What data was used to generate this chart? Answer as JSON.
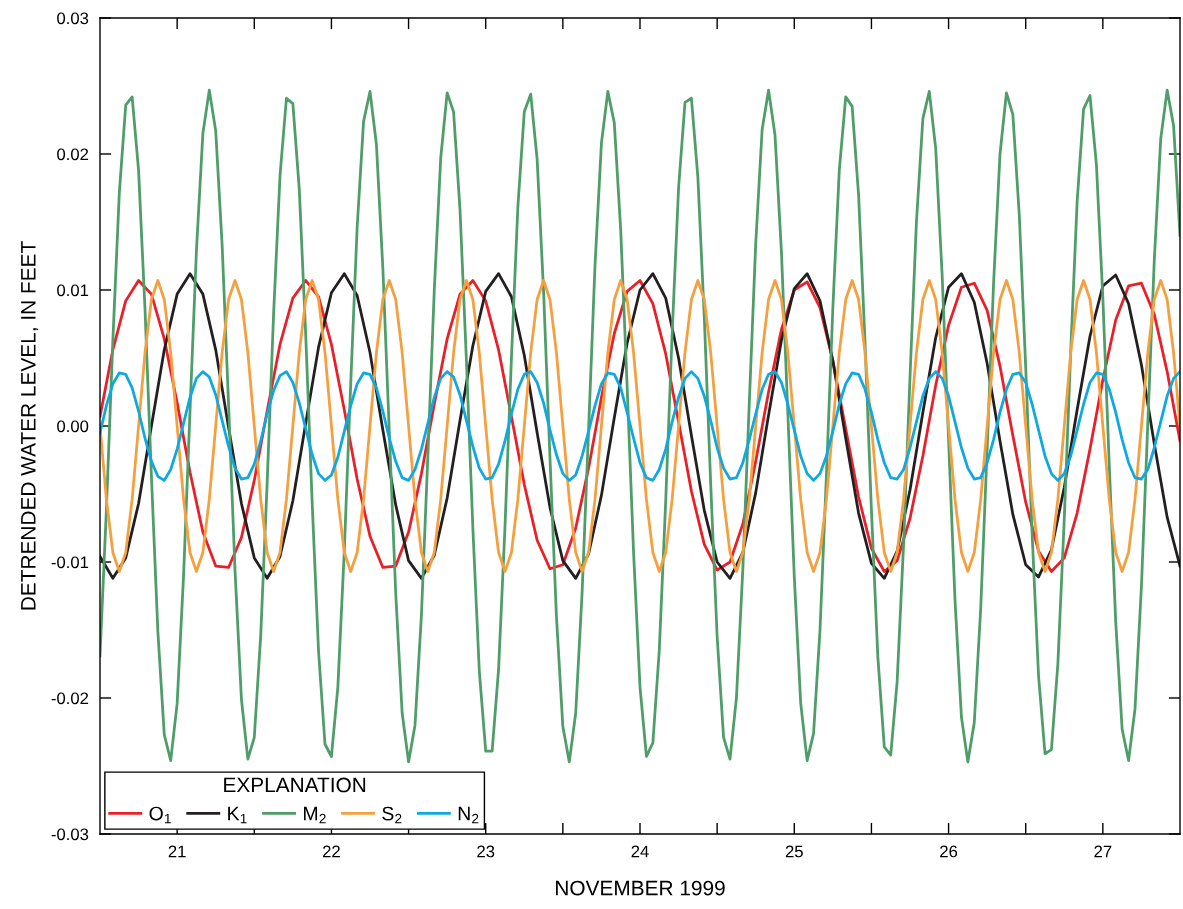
{
  "chart_data": {
    "type": "line",
    "xlabel": "NOVEMBER 1999",
    "ylabel": "DETRENDED WATER LEVEL, IN FEET",
    "legend_title": "EXPLANATION",
    "legend": "bottom left",
    "grid": false,
    "marker": "none",
    "line_style": "solid",
    "xlim": [
      "1999-11-21T00:00",
      "1999-11-28T00:00"
    ],
    "xticks": [
      {
        "value": "1999-11-21T12:00",
        "label": "21"
      },
      {
        "value": "1999-11-22T00:00",
        "label": null
      },
      {
        "value": "1999-11-22T12:00",
        "label": "22"
      },
      {
        "value": "1999-11-23T00:00",
        "label": null
      },
      {
        "value": "1999-11-23T12:00",
        "label": "23"
      },
      {
        "value": "1999-11-24T00:00",
        "label": null
      },
      {
        "value": "1999-11-24T12:00",
        "label": "24"
      },
      {
        "value": "1999-11-25T00:00",
        "label": null
      },
      {
        "value": "1999-11-25T12:00",
        "label": "25"
      },
      {
        "value": "1999-11-26T00:00",
        "label": null
      },
      {
        "value": "1999-11-26T12:00",
        "label": "26"
      },
      {
        "value": "1999-11-27T00:00",
        "label": null
      },
      {
        "value": "1999-11-27T12:00",
        "label": "27"
      }
    ],
    "ylim": [
      -0.03,
      0.03
    ],
    "yticks": [
      -0.03,
      -0.02,
      -0.01,
      {
        "value": 0,
        "label": "0.00"
      },
      0.01,
      0.02,
      0.03
    ],
    "x": [
      "1999-11-21T00:00",
      "1999-11-21T01:00",
      "1999-11-21T02:00",
      "1999-11-21T03:00",
      "1999-11-21T04:00",
      "1999-11-21T05:00",
      "1999-11-21T06:00",
      "1999-11-21T07:00",
      "1999-11-21T08:00",
      "1999-11-21T09:00",
      "1999-11-21T10:00",
      "1999-11-21T11:00",
      "1999-11-21T12:00",
      "1999-11-21T13:00",
      "1999-11-21T14:00",
      "1999-11-21T15:00",
      "1999-11-21T16:00",
      "1999-11-21T17:00",
      "1999-11-21T18:00",
      "1999-11-21T19:00",
      "1999-11-21T20:00",
      "1999-11-21T21:00",
      "1999-11-21T22:00",
      "1999-11-21T23:00",
      "1999-11-22T00:00",
      "1999-11-22T01:00",
      "1999-11-22T02:00",
      "1999-11-22T03:00",
      "1999-11-22T04:00",
      "1999-11-22T05:00",
      "1999-11-22T06:00",
      "1999-11-22T07:00",
      "1999-11-22T08:00",
      "1999-11-22T09:00",
      "1999-11-22T10:00",
      "1999-11-22T11:00",
      "1999-11-22T12:00",
      "1999-11-22T13:00",
      "1999-11-22T14:00",
      "1999-11-22T15:00",
      "1999-11-22T16:00",
      "1999-11-22T17:00",
      "1999-11-22T18:00",
      "1999-11-22T19:00",
      "1999-11-22T20:00",
      "1999-11-22T21:00",
      "1999-11-22T22:00",
      "1999-11-22T23:00",
      "1999-11-23T00:00",
      "1999-11-23T01:00",
      "1999-11-23T02:00",
      "1999-11-23T03:00",
      "1999-11-23T04:00",
      "1999-11-23T05:00",
      "1999-11-23T06:00",
      "1999-11-23T07:00",
      "1999-11-23T08:00",
      "1999-11-23T09:00",
      "1999-11-23T10:00",
      "1999-11-23T11:00",
      "1999-11-23T12:00",
      "1999-11-23T13:00",
      "1999-11-23T14:00",
      "1999-11-23T15:00",
      "1999-11-23T16:00",
      "1999-11-23T17:00",
      "1999-11-23T18:00",
      "1999-11-23T19:00",
      "1999-11-23T20:00",
      "1999-11-23T21:00",
      "1999-11-23T22:00",
      "1999-11-23T23:00",
      "1999-11-24T00:00",
      "1999-11-24T01:00",
      "1999-11-24T02:00",
      "1999-11-24T03:00",
      "1999-11-24T04:00",
      "1999-11-24T05:00",
      "1999-11-24T06:00",
      "1999-11-24T07:00",
      "1999-11-24T08:00",
      "1999-11-24T09:00",
      "1999-11-24T10:00",
      "1999-11-24T11:00",
      "1999-11-24T12:00",
      "1999-11-24T13:00",
      "1999-11-24T14:00",
      "1999-11-24T15:00",
      "1999-11-24T16:00",
      "1999-11-24T17:00",
      "1999-11-24T18:00",
      "1999-11-24T19:00",
      "1999-11-24T20:00",
      "1999-11-24T21:00",
      "1999-11-24T22:00",
      "1999-11-24T23:00",
      "1999-11-25T00:00",
      "1999-11-25T01:00",
      "1999-11-25T02:00",
      "1999-11-25T03:00",
      "1999-11-25T04:00",
      "1999-11-25T05:00",
      "1999-11-25T06:00",
      "1999-11-25T07:00",
      "1999-11-25T08:00",
      "1999-11-25T09:00",
      "1999-11-25T10:00",
      "1999-11-25T11:00",
      "1999-11-25T12:00",
      "1999-11-25T13:00",
      "1999-11-25T14:00",
      "1999-11-25T15:00",
      "1999-11-25T16:00",
      "1999-11-25T17:00",
      "1999-11-25T18:00",
      "1999-11-25T19:00",
      "1999-11-25T20:00",
      "1999-11-25T21:00",
      "1999-11-25T22:00",
      "1999-11-25T23:00",
      "1999-11-26T00:00",
      "1999-11-26T01:00",
      "1999-11-26T02:00",
      "1999-11-26T03:00",
      "1999-11-26T04:00",
      "1999-11-26T05:00",
      "1999-11-26T06:00",
      "1999-11-26T07:00",
      "1999-11-26T08:00",
      "1999-11-26T09:00",
      "1999-11-26T10:00",
      "1999-11-26T11:00",
      "1999-11-26T12:00",
      "1999-11-26T13:00",
      "1999-11-26T14:00",
      "1999-11-26T15:00",
      "1999-11-26T16:00",
      "1999-11-26T17:00",
      "1999-11-26T18:00",
      "1999-11-26T19:00",
      "1999-11-26T20:00",
      "1999-11-26T21:00",
      "1999-11-26T22:00",
      "1999-11-26T23:00",
      "1999-11-27T00:00",
      "1999-11-27T01:00",
      "1999-11-27T02:00",
      "1999-11-27T03:00",
      "1999-11-27T04:00",
      "1999-11-27T05:00",
      "1999-11-27T06:00",
      "1999-11-27T07:00",
      "1999-11-27T08:00",
      "1999-11-27T09:00",
      "1999-11-27T10:00",
      "1999-11-27T11:00",
      "1999-11-27T12:00",
      "1999-11-27T13:00",
      "1999-11-27T14:00",
      "1999-11-27T15:00",
      "1999-11-27T16:00",
      "1999-11-27T17:00",
      "1999-11-27T18:00",
      "1999-11-27T19:00",
      "1999-11-27T20:00",
      "1999-11-27T21:00",
      "1999-11-27T22:00",
      "1999-11-27T23:00",
      "1999-11-28T00:00"
    ],
    "series": [
      {
        "name": "O$_{1}$",
        "color": "#e8202a",
        "x": [
          "1999-11-21T00:00",
          "1999-11-21T02:00",
          "1999-11-21T04:00",
          "1999-11-21T06:00",
          "1999-11-21T08:00",
          "1999-11-21T10:00",
          "1999-11-21T12:00",
          "1999-11-21T14:00",
          "1999-11-21T16:00",
          "1999-11-21T18:00",
          "1999-11-21T20:00",
          "1999-11-21T22:00",
          "1999-11-22T00:00",
          "1999-11-22T02:00",
          "1999-11-22T04:00",
          "1999-11-22T06:00",
          "1999-11-22T08:00",
          "1999-11-22T10:00",
          "1999-11-22T12:00",
          "1999-11-22T14:00",
          "1999-11-22T16:00",
          "1999-11-22T18:00",
          "1999-11-22T20:00",
          "1999-11-22T22:00",
          "1999-11-23T00:00",
          "1999-11-23T02:00",
          "1999-11-23T04:00",
          "1999-11-23T06:00",
          "1999-11-23T08:00",
          "1999-11-23T10:00",
          "1999-11-23T12:00",
          "1999-11-23T14:00",
          "1999-11-23T16:00",
          "1999-11-23T18:00",
          "1999-11-23T20:00",
          "1999-11-23T22:00",
          "1999-11-24T00:00",
          "1999-11-24T02:00",
          "1999-11-24T04:00",
          "1999-11-24T06:00",
          "1999-11-24T08:00",
          "1999-11-24T10:00",
          "1999-11-24T12:00",
          "1999-11-24T14:00",
          "1999-11-24T16:00",
          "1999-11-24T18:00",
          "1999-11-24T20:00",
          "1999-11-24T22:00",
          "1999-11-25T00:00",
          "1999-11-25T02:00",
          "1999-11-25T04:00",
          "1999-11-25T06:00",
          "1999-11-25T08:00",
          "1999-11-25T10:00",
          "1999-11-25T12:00",
          "1999-11-25T14:00",
          "1999-11-25T16:00",
          "1999-11-25T18:00",
          "1999-11-25T20:00",
          "1999-11-25T22:00",
          "1999-11-26T00:00",
          "1999-11-26T02:00",
          "1999-11-26T04:00",
          "1999-11-26T06:00",
          "1999-11-26T08:00",
          "1999-11-26T10:00",
          "1999-11-26T12:00",
          "1999-11-26T14:00",
          "1999-11-26T16:00",
          "1999-11-26T18:00",
          "1999-11-26T20:00",
          "1999-11-26T22:00",
          "1999-11-27T00:00",
          "1999-11-27T02:00",
          "1999-11-27T04:00",
          "1999-11-27T06:00",
          "1999-11-27T08:00",
          "1999-11-27T10:00",
          "1999-11-27T12:00",
          "1999-11-27T14:00",
          "1999-11-27T16:00",
          "1999-11-27T18:00",
          "1999-11-27T20:00",
          "1999-11-27T22:00",
          "1999-11-28T00:00"
        ],
        "values": [
          0.0007,
          0.0056,
          0.0092,
          0.0107,
          0.0097,
          0.0064,
          0.0017,
          -0.0034,
          -0.0078,
          -0.0103,
          -0.0104,
          -0.0082,
          -0.004,
          0.0011,
          0.006,
          0.0094,
          0.0107,
          0.0095,
          0.006,
          0.0012,
          -0.0039,
          -0.0081,
          -0.0104,
          -0.0103,
          -0.0078,
          -0.0035,
          0.0016,
          0.0064,
          0.0097,
          0.0107,
          0.0092,
          0.0056,
          0.0007,
          -0.0043,
          -0.0084,
          -0.0105,
          -0.0102,
          -0.0075,
          -0.0031,
          0.0021,
          0.0068,
          0.0099,
          0.0107,
          0.009,
          0.0053,
          0.0003,
          -0.0048,
          -0.0087,
          -0.0106,
          -0.01,
          -0.0072,
          -0.0026,
          0.0025,
          0.0071,
          0.01,
          0.0106,
          0.0087,
          0.0048,
          -0.0002,
          -0.0052,
          -0.009,
          -0.0107,
          -0.0099,
          -0.0068,
          -0.0022,
          0.003,
          0.0074,
          0.0102,
          0.0105,
          0.0085,
          0.0044,
          -0.0007,
          -0.0056,
          -0.0092,
          -0.0107,
          -0.0097,
          -0.0064,
          -0.0017,
          0.0034,
          0.0078,
          0.0103,
          0.0105,
          0.0082,
          0.004,
          -0.0011
        ]
      },
      {
        "name": "K$_{1}$",
        "color": "#231f20",
        "x": [
          "1999-11-21T00:00",
          "1999-11-21T02:00",
          "1999-11-21T04:00",
          "1999-11-21T06:00",
          "1999-11-21T08:00",
          "1999-11-21T10:00",
          "1999-11-21T12:00",
          "1999-11-21T14:00",
          "1999-11-21T16:00",
          "1999-11-21T18:00",
          "1999-11-21T20:00",
          "1999-11-21T22:00",
          "1999-11-22T00:00",
          "1999-11-22T02:00",
          "1999-11-22T04:00",
          "1999-11-22T06:00",
          "1999-11-22T08:00",
          "1999-11-22T10:00",
          "1999-11-22T12:00",
          "1999-11-22T14:00",
          "1999-11-22T16:00",
          "1999-11-22T18:00",
          "1999-11-22T20:00",
          "1999-11-22T22:00",
          "1999-11-23T00:00",
          "1999-11-23T02:00",
          "1999-11-23T04:00",
          "1999-11-23T06:00",
          "1999-11-23T08:00",
          "1999-11-23T10:00",
          "1999-11-23T12:00",
          "1999-11-23T14:00",
          "1999-11-23T16:00",
          "1999-11-23T18:00",
          "1999-11-23T20:00",
          "1999-11-23T22:00",
          "1999-11-24T00:00",
          "1999-11-24T02:00",
          "1999-11-24T04:00",
          "1999-11-24T06:00",
          "1999-11-24T08:00",
          "1999-11-24T10:00",
          "1999-11-24T12:00",
          "1999-11-24T14:00",
          "1999-11-24T16:00",
          "1999-11-24T18:00",
          "1999-11-24T20:00",
          "1999-11-24T22:00",
          "1999-11-25T00:00",
          "1999-11-25T02:00",
          "1999-11-25T04:00",
          "1999-11-25T06:00",
          "1999-11-25T08:00",
          "1999-11-25T10:00",
          "1999-11-25T12:00",
          "1999-11-25T14:00",
          "1999-11-25T16:00",
          "1999-11-25T18:00",
          "1999-11-25T20:00",
          "1999-11-25T22:00",
          "1999-11-26T00:00",
          "1999-11-26T02:00",
          "1999-11-26T04:00",
          "1999-11-26T06:00",
          "1999-11-26T08:00",
          "1999-11-26T10:00",
          "1999-11-26T12:00",
          "1999-11-26T14:00",
          "1999-11-26T16:00",
          "1999-11-26T18:00",
          "1999-11-26T20:00",
          "1999-11-26T22:00",
          "1999-11-27T00:00",
          "1999-11-27T02:00",
          "1999-11-27T04:00",
          "1999-11-27T06:00",
          "1999-11-27T08:00",
          "1999-11-27T10:00",
          "1999-11-27T12:00",
          "1999-11-27T14:00",
          "1999-11-27T16:00",
          "1999-11-27T18:00",
          "1999-11-27T20:00",
          "1999-11-27T22:00",
          "1999-11-28T00:00"
        ],
        "values": [
          -0.0096,
          -0.0112,
          -0.0097,
          -0.0057,
          0.0,
          0.0056,
          0.0097,
          0.0112,
          0.0097,
          0.0056,
          -0.0001,
          -0.0057,
          -0.0097,
          -0.0112,
          -0.0096,
          -0.0055,
          0.0002,
          0.0058,
          0.0098,
          0.0112,
          0.0096,
          0.0054,
          -0.0003,
          -0.0058,
          -0.0099,
          -0.0112,
          -0.0095,
          -0.0053,
          0.0004,
          0.0059,
          0.0099,
          0.0112,
          0.0095,
          0.0052,
          -0.0005,
          -0.006,
          -0.0099,
          -0.0112,
          -0.0094,
          -0.0051,
          0.0006,
          0.0061,
          0.01,
          0.0112,
          0.0094,
          0.005,
          -0.0007,
          -0.0062,
          -0.01,
          -0.0112,
          -0.0093,
          -0.0049,
          0.0008,
          0.0063,
          0.0101,
          0.0112,
          0.0092,
          0.0048,
          -0.0009,
          -0.0064,
          -0.0101,
          -0.0112,
          -0.0092,
          -0.0047,
          0.001,
          0.0065,
          0.0102,
          0.0112,
          0.0091,
          0.0046,
          -0.0011,
          -0.0065,
          -0.0102,
          -0.0111,
          -0.0091,
          -0.0045,
          0.0012,
          0.0066,
          0.0103,
          0.0111,
          0.009,
          0.0045,
          -0.0013,
          -0.0067,
          -0.0103
        ]
      },
      {
        "name": "M$_{2}$",
        "color": "#4f9d69",
        "values": [
          -0.0169,
          -0.0061,
          0.0063,
          0.0171,
          0.0236,
          0.0242,
          0.0188,
          0.0086,
          -0.0037,
          -0.0151,
          -0.0227,
          -0.0246,
          -0.0204,
          -0.011,
          0.0011,
          0.0129,
          0.0215,
          0.0247,
          0.0217,
          0.0133,
          0.0016,
          -0.0106,
          -0.0201,
          -0.0245,
          -0.0229,
          -0.0154,
          -0.0042,
          0.0082,
          0.0184,
          0.0241,
          0.0237,
          0.0174,
          0.0067,
          -0.0056,
          -0.0166,
          -0.0234,
          -0.0243,
          -0.0192,
          -0.0092,
          0.0031,
          0.0146,
          0.0224,
          0.0246,
          0.0207,
          0.0116,
          -0.0004,
          -0.0123,
          -0.0211,
          -0.0247,
          -0.022,
          -0.0139,
          -0.0022,
          0.01,
          0.0197,
          0.0245,
          0.0231,
          0.0159,
          0.0048,
          -0.0075,
          -0.018,
          -0.0239,
          -0.0239,
          -0.0179,
          -0.0074,
          0.005,
          0.0161,
          0.0231,
          0.0244,
          0.0196,
          0.0099,
          -0.0024,
          -0.014,
          -0.0221,
          -0.0247,
          -0.0211,
          -0.0122,
          -0.0003,
          0.0118,
          0.0208,
          0.0246,
          0.0223,
          0.0144,
          0.0029,
          -0.0093,
          -0.0192,
          -0.0243,
          -0.0233,
          -0.0165,
          -0.0055,
          0.0068,
          0.0175,
          0.0238,
          0.0241,
          0.0183,
          0.008,
          -0.0043,
          -0.0155,
          -0.0229,
          -0.0245,
          -0.02,
          -0.0105,
          0.0017,
          0.0134,
          0.0218,
          0.0247,
          0.0214,
          0.0128,
          0.0009,
          -0.0111,
          -0.0204,
          -0.0246,
          -0.0226,
          -0.015,
          -0.0036,
          0.0087,
          0.0188,
          0.0242,
          0.0235,
          0.017,
          0.0062,
          -0.0062,
          -0.017,
          -0.0236,
          -0.0242,
          -0.0188,
          -0.0087,
          0.0036,
          0.015,
          0.0226,
          0.0246,
          0.0204,
          0.0111,
          -0.001,
          -0.0128,
          -0.0214,
          -0.0247,
          -0.0218,
          -0.0134,
          -0.0017,
          0.0105,
          0.02,
          0.0245,
          0.0229,
          0.0155,
          0.0043,
          -0.008,
          -0.0184,
          -0.0241,
          -0.0238,
          -0.0175,
          -0.0068,
          0.0055,
          0.0165,
          0.0233,
          0.0243,
          0.0192,
          0.0094,
          -0.0029,
          -0.0144,
          -0.0223,
          -0.0246,
          -0.0208,
          -0.0118,
          0.0003,
          0.0122,
          0.0211,
          0.0247,
          0.0221,
          0.014
        ]
      },
      {
        "name": "S$_{2}$",
        "color": "#f5a040",
        "values": [
          0,
          -0.0054,
          -0.0093,
          -0.0107,
          -0.0093,
          -0.0054,
          0,
          0.0054,
          0.0093,
          0.0107,
          0.0093,
          0.0054,
          0,
          -0.0054,
          -0.0093,
          -0.0107,
          -0.0093,
          -0.0054,
          0,
          0.0054,
          0.0093,
          0.0107,
          0.0093,
          0.0054,
          0,
          -0.0054,
          -0.0093,
          -0.0107,
          -0.0093,
          -0.0054,
          0,
          0.0054,
          0.0093,
          0.0107,
          0.0093,
          0.0054,
          0,
          -0.0054,
          -0.0093,
          -0.0107,
          -0.0093,
          -0.0054,
          0,
          0.0054,
          0.0093,
          0.0107,
          0.0093,
          0.0054,
          0,
          -0.0054,
          -0.0093,
          -0.0107,
          -0.0093,
          -0.0054,
          0,
          0.0054,
          0.0093,
          0.0107,
          0.0093,
          0.0054,
          0,
          -0.0054,
          -0.0093,
          -0.0107,
          -0.0093,
          -0.0054,
          0,
          0.0054,
          0.0093,
          0.0107,
          0.0093,
          0.0054,
          0,
          -0.0054,
          -0.0093,
          -0.0107,
          -0.0093,
          -0.0054,
          0,
          0.0054,
          0.0093,
          0.0107,
          0.0093,
          0.0054,
          0,
          -0.0054,
          -0.0093,
          -0.0107,
          -0.0093,
          -0.0054,
          0,
          0.0054,
          0.0093,
          0.0107,
          0.0093,
          0.0054,
          0,
          -0.0054,
          -0.0093,
          -0.0107,
          -0.0093,
          -0.0054,
          0,
          0.0054,
          0.0093,
          0.0107,
          0.0093,
          0.0054,
          0,
          -0.0054,
          -0.0093,
          -0.0107,
          -0.0093,
          -0.0054,
          0,
          0.0054,
          0.0093,
          0.0107,
          0.0093,
          0.0054,
          0,
          -0.0054,
          -0.0093,
          -0.0107,
          -0.0093,
          -0.0054,
          0,
          0.0054,
          0.0093,
          0.0107,
          0.0093,
          0.0054,
          0,
          -0.0054,
          -0.0093,
          -0.0107,
          -0.0093,
          -0.0054,
          0,
          0.0054,
          0.0093,
          0.0107,
          0.0093,
          0.0054,
          0,
          -0.0054,
          -0.0093,
          -0.0107,
          -0.0093,
          -0.0054,
          0,
          0.0054,
          0.0093,
          0.0107,
          0.0093,
          0.0054,
          0,
          -0.0054,
          -0.0093,
          -0.0107,
          -0.0093,
          -0.0054,
          0,
          0.0054,
          0.0093,
          0.0107,
          0.0093,
          0.0054,
          0
        ]
      },
      {
        "name": "N$_{2}$",
        "color": "#10a8e0",
        "values": [
          -0.0005,
          0.0015,
          0.0031,
          0.0039,
          0.0038,
          0.0028,
          0.0011,
          -0.0009,
          -0.0026,
          -0.0037,
          -0.004,
          -0.0032,
          -0.0017,
          0.0002,
          0.0021,
          0.0035,
          0.004,
          0.0036,
          0.0023,
          0.0004,
          -0.0015,
          -0.0031,
          -0.0039,
          -0.0038,
          -0.0028,
          -0.0011,
          0.0009,
          0.0026,
          0.0037,
          0.004,
          0.0032,
          0.0017,
          -0.0002,
          -0.0021,
          -0.0035,
          -0.004,
          -0.0036,
          -0.0023,
          -0.0004,
          0.0015,
          0.0031,
          0.0039,
          0.0038,
          0.0028,
          0.0011,
          -0.0009,
          -0.0026,
          -0.0038,
          -0.004,
          -0.0032,
          -0.0017,
          0.0002,
          0.0021,
          0.0035,
          0.004,
          0.0036,
          0.0023,
          0.0004,
          -0.0015,
          -0.0031,
          -0.0039,
          -0.0038,
          -0.0028,
          -0.0011,
          0.0009,
          0.0027,
          0.0038,
          0.004,
          0.0032,
          0.0017,
          -0.0003,
          -0.0021,
          -0.0035,
          -0.004,
          -0.0036,
          -0.0022,
          -0.0004,
          0.0015,
          0.0031,
          0.0039,
          0.0038,
          0.0028,
          0.001,
          -0.0009,
          -0.0027,
          -0.0038,
          -0.004,
          -0.0032,
          -0.0017,
          0.0003,
          0.0021,
          0.0035,
          0.004,
          0.0035,
          0.0022,
          0.0004,
          -0.0016,
          -0.0031,
          -0.0039,
          -0.0038,
          -0.0027,
          -0.001,
          0.0009,
          0.0027,
          0.0038,
          0.004,
          0.0032,
          0.0016,
          -0.0003,
          -0.0022,
          -0.0035,
          -0.004,
          -0.0035,
          -0.0022,
          -0.0004,
          0.0016,
          0.0031,
          0.0039,
          0.0038,
          0.0027,
          0.001,
          -0.001,
          -0.0027,
          -0.0038,
          -0.0039,
          -0.0032,
          -0.0016,
          0.0003,
          0.0022,
          0.0035,
          0.004,
          0.0035,
          0.0022,
          0.0003,
          -0.0016,
          -0.0031,
          -0.0039,
          -0.0038,
          -0.0027,
          -0.001,
          0.001,
          0.0027,
          0.0038,
          0.0039,
          0.0032,
          0.0016,
          -0.0003,
          -0.0022,
          -0.0035,
          -0.004,
          -0.0035,
          -0.0022,
          -0.0003,
          0.0016,
          0.0032,
          0.0039,
          0.0038,
          0.0027,
          0.001,
          -0.001,
          -0.0027,
          -0.0038,
          -0.0039,
          -0.0032,
          -0.0016,
          0.0003,
          0.0022,
          0.0035,
          0.004
        ]
      }
    ]
  }
}
